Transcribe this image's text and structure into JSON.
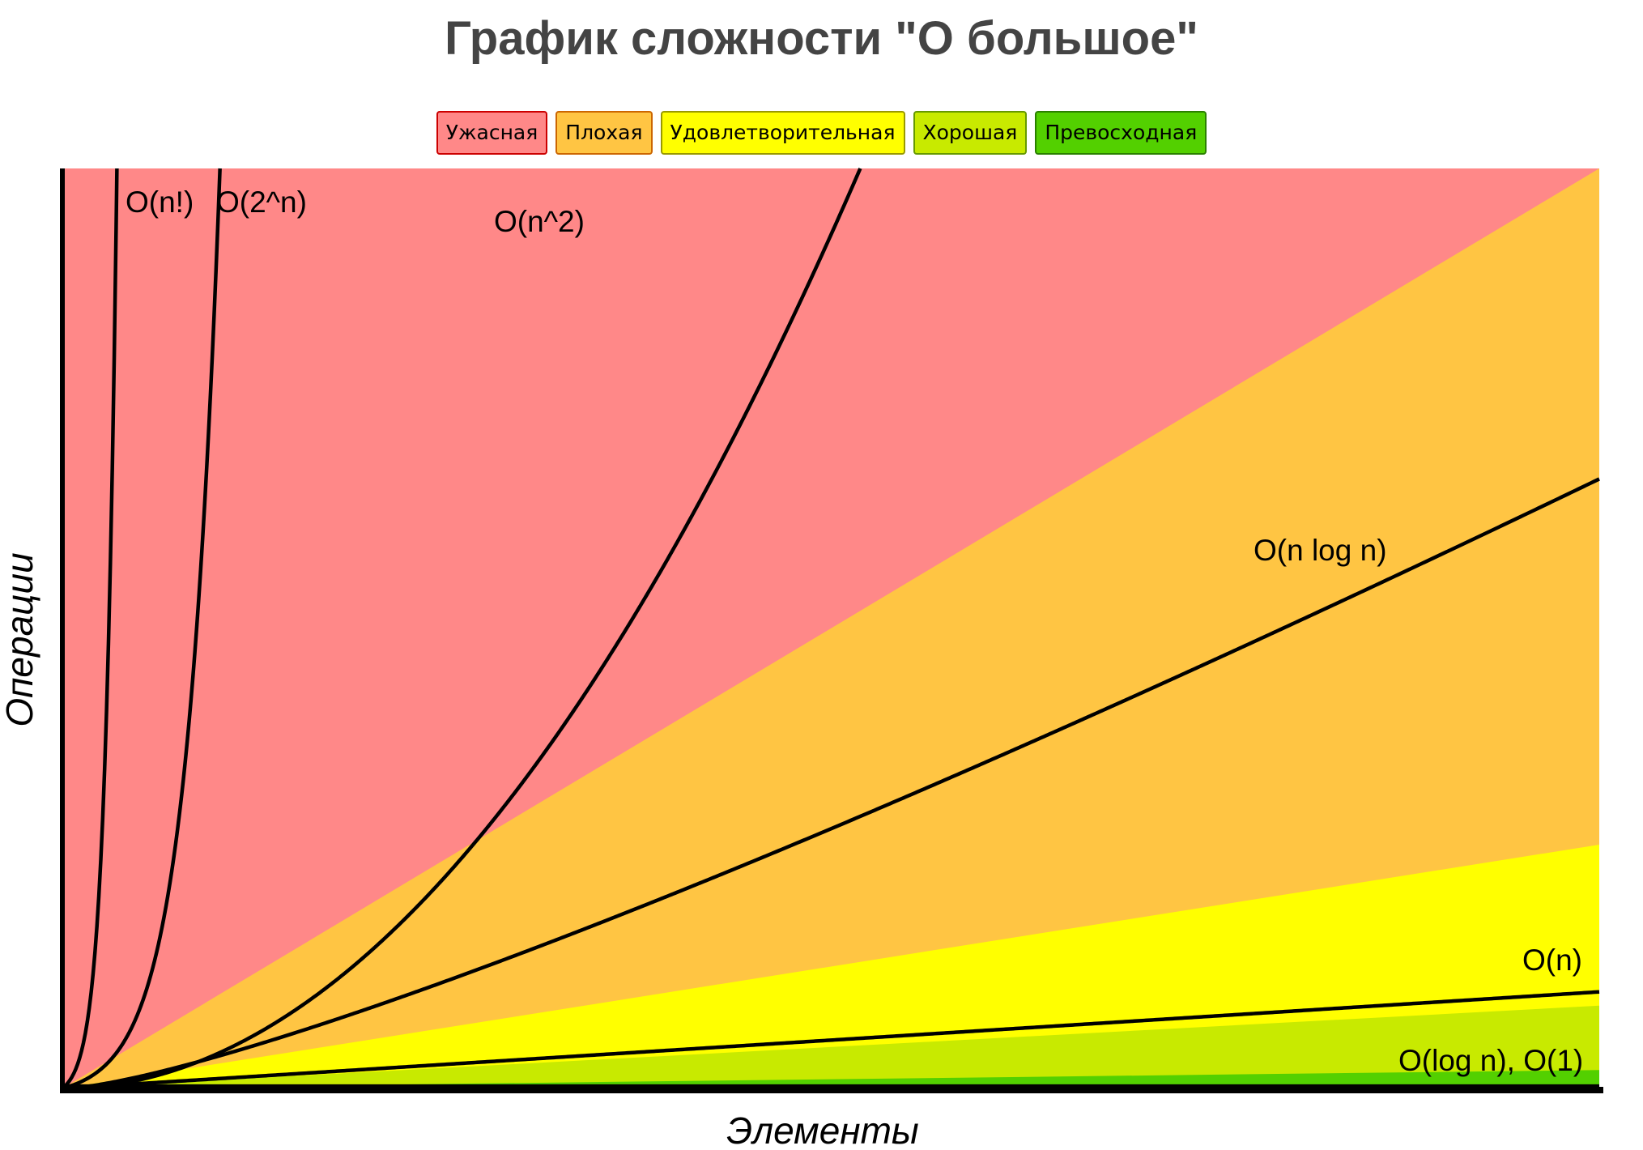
{
  "chart_data": {
    "type": "area",
    "title": "График сложности \"О большое\"",
    "xlabel": "Элементы",
    "ylabel": "Операции",
    "xlim": [
      0,
      100
    ],
    "ylim": [
      0,
      100
    ],
    "grid": false,
    "legend_position": "top-center",
    "legend": [
      {
        "label": "Ужасная",
        "color": "#ff8888",
        "border": "#cc0000"
      },
      {
        "label": "Плохая",
        "color": "#ffc543",
        "border": "#cc6600"
      },
      {
        "label": "Удовлетворительная",
        "color": "#ffff00",
        "border": "#999900"
      },
      {
        "label": "Хорошая",
        "color": "#c8ea00",
        "border": "#669900"
      },
      {
        "label": "Превосходная",
        "color": "#53d000",
        "border": "#2a8000"
      }
    ],
    "regions": [
      {
        "label": "Превосходная",
        "color": "#53d000",
        "upper_y_at_xmax": 2
      },
      {
        "label": "Хорошая",
        "color": "#c8ea00",
        "upper_y_at_xmax": 9
      },
      {
        "label": "Удовлетворительная",
        "color": "#ffff00",
        "upper_y_at_xmax": 26.5
      },
      {
        "label": "Плохая",
        "color": "#ffc543",
        "upper_y_at_xmax": 100
      },
      {
        "label": "Ужасная",
        "color": "#ff8888",
        "upper_y_at_xmax": null
      }
    ],
    "series": [
      {
        "name": "O(n!)",
        "color": "#000000"
      },
      {
        "name": "O(2^n)",
        "color": "#000000"
      },
      {
        "name": "O(n^2)",
        "color": "#000000"
      },
      {
        "name": "O(n log n)",
        "color": "#000000"
      },
      {
        "name": "O(n)",
        "color": "#000000"
      },
      {
        "name": "O(log n), O(1)",
        "color": "#000000"
      }
    ]
  }
}
